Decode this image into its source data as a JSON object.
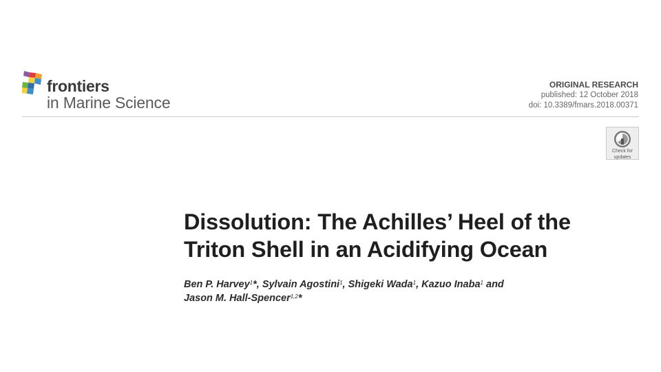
{
  "header": {
    "logo": {
      "brand": "frontiers",
      "journal": "in Marine Science"
    },
    "article_type": "ORIGINAL RESEARCH",
    "published": "published: 12 October 2018",
    "doi": "doi: 10.3389/fmars.2018.00371",
    "badge": {
      "line1": "Check for",
      "line2": "updates"
    }
  },
  "article": {
    "title_line1": "Dissolution: The Achilles’ Heel of the",
    "title_line2": "Triton Shell in an Acidifying Ocean",
    "authors": [
      {
        "name": "Ben P. Harvey",
        "sup": "1",
        "suffix": "*, "
      },
      {
        "name": "Sylvain Agostini",
        "sup": "1",
        "suffix": ", "
      },
      {
        "name": "Shigeki Wada",
        "sup": "1",
        "suffix": ", "
      },
      {
        "name": "Kazuo Inaba",
        "sup": "1",
        "suffix": " and"
      },
      {
        "name": "Jason M. Hall-Spencer",
        "sup": "1,2",
        "suffix": "*"
      }
    ]
  },
  "colors": {
    "text": "#1f1f1f",
    "meta": "#666666",
    "rule": "#c8c8c8",
    "logo_red": "#e0393e",
    "logo_orange": "#f0a033",
    "logo_yellow": "#f5d03a",
    "logo_green": "#6cb33f",
    "logo_blue": "#3d8ec9",
    "logo_purple": "#8a5aa6"
  }
}
